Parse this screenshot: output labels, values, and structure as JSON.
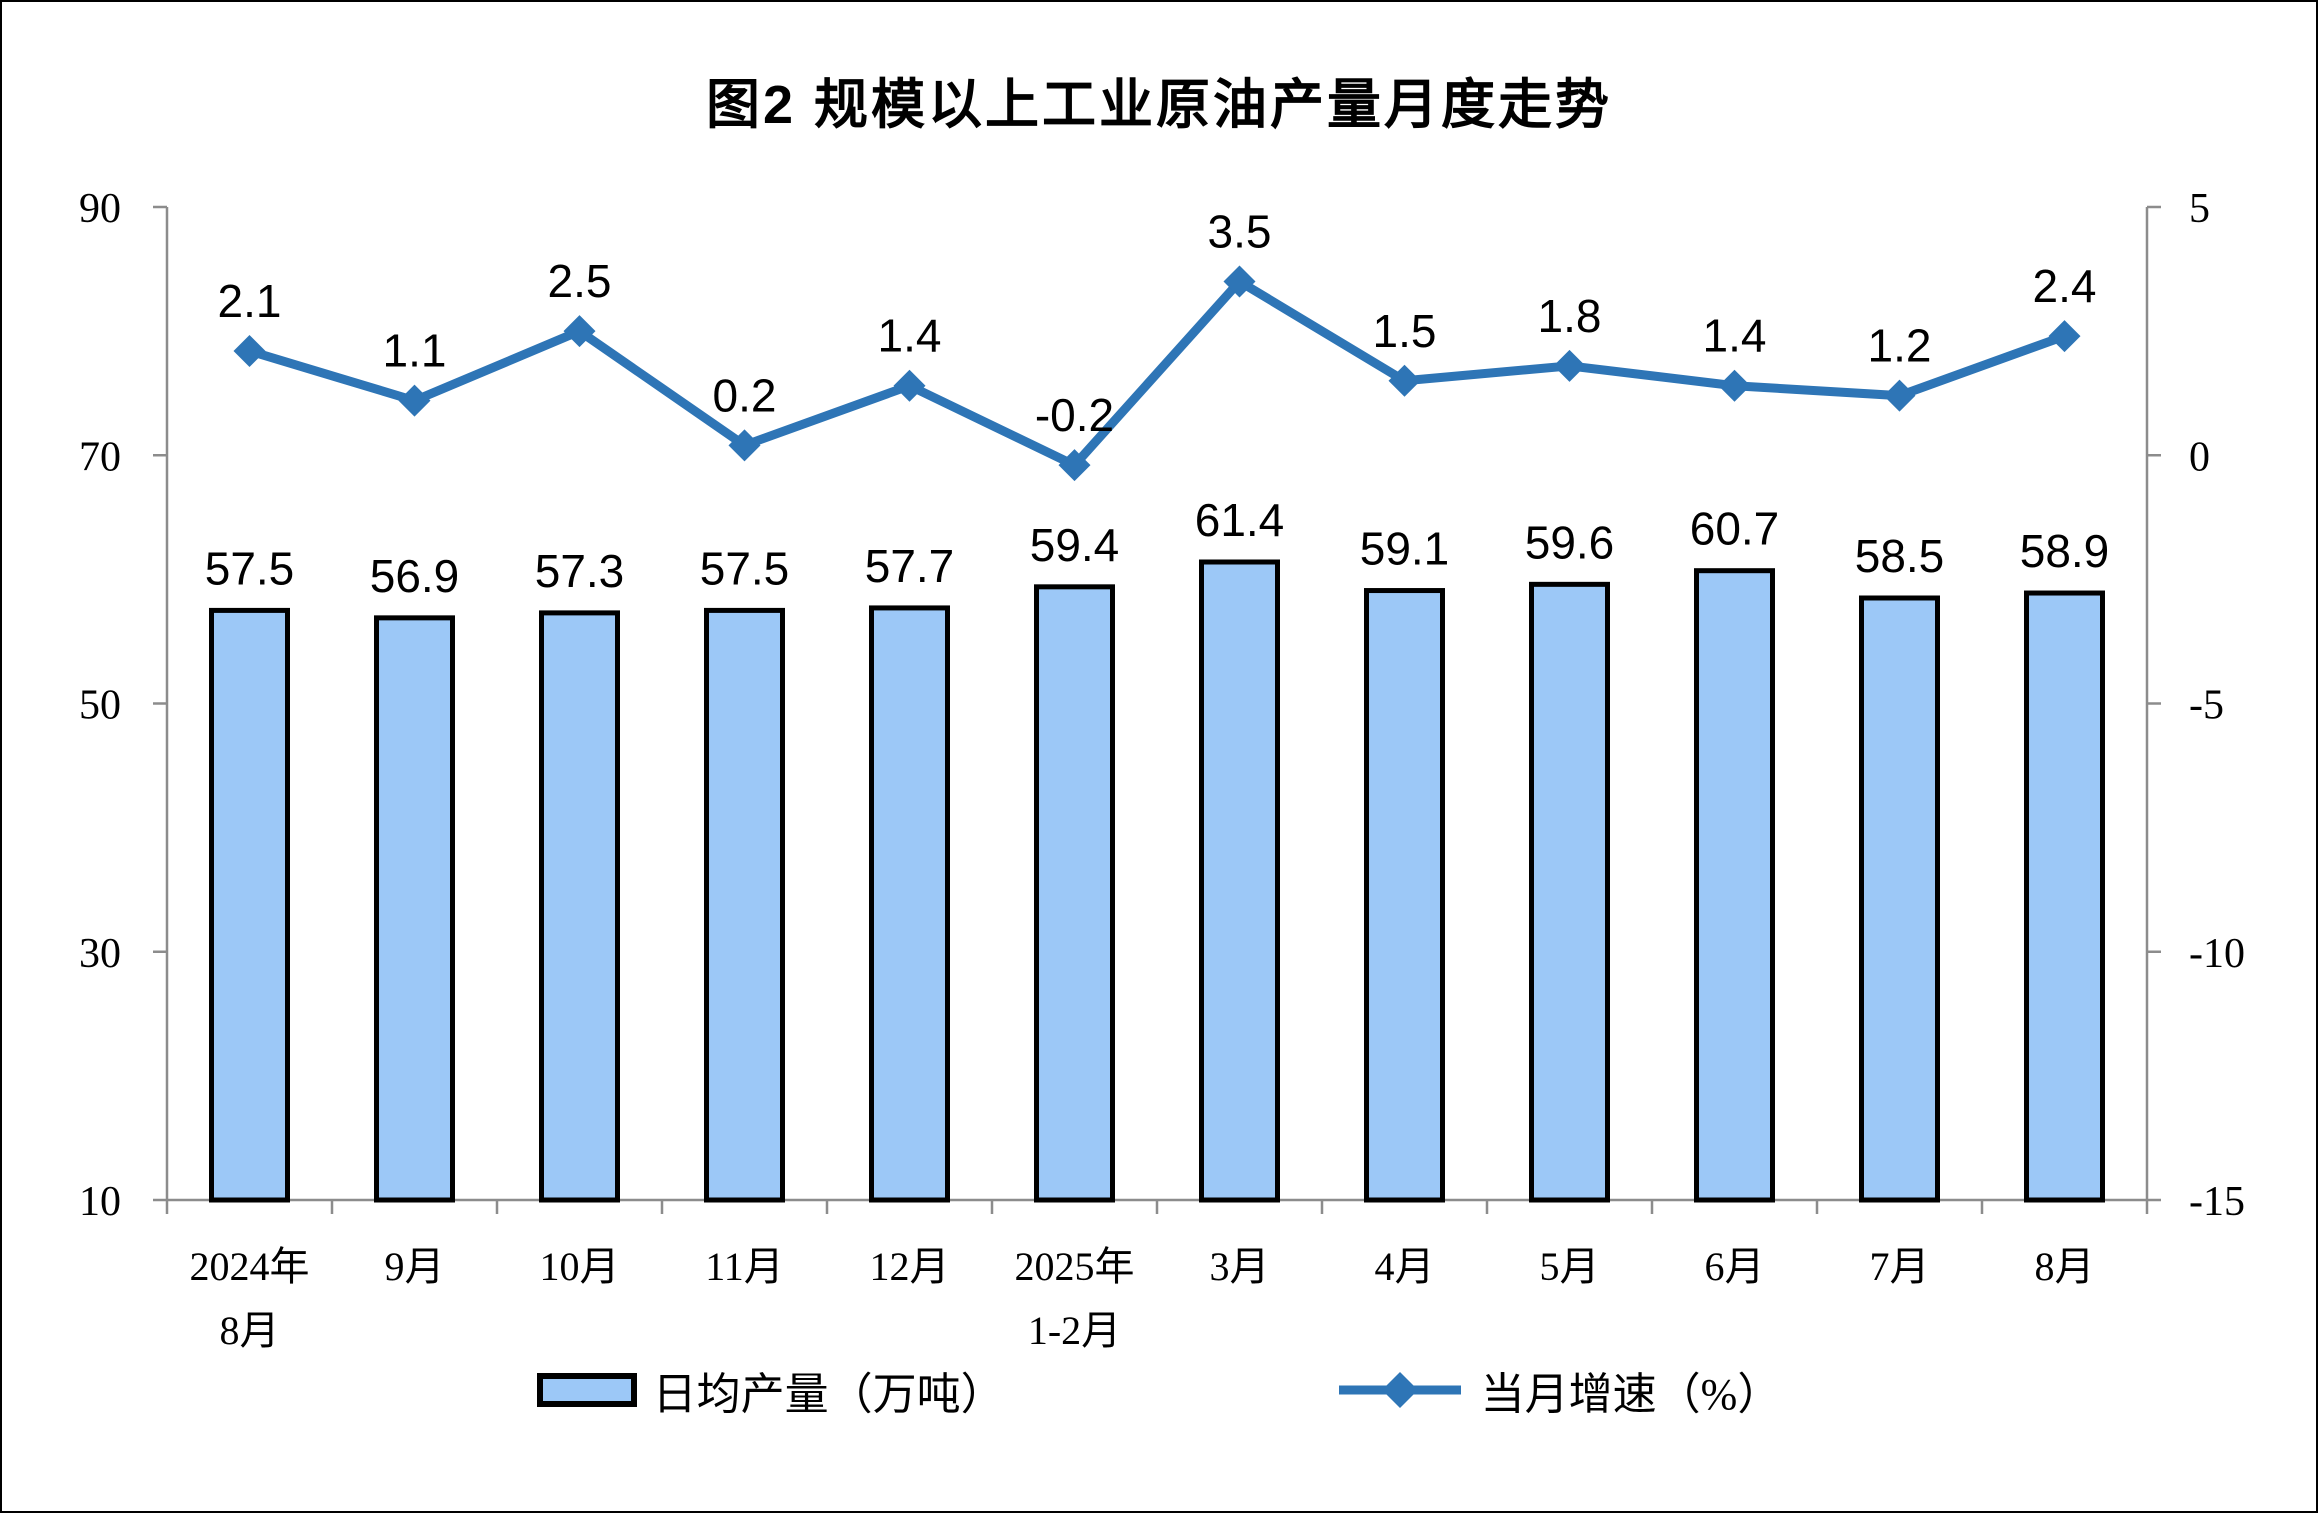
{
  "chart_data": {
    "type": "bar+line",
    "title": "图2 规模以上工业原油产量月度走势",
    "categories": [
      "2024年\n8月",
      "9月",
      "10月",
      "11月",
      "12月",
      "2025年\n1-2月",
      "3月",
      "4月",
      "5月",
      "6月",
      "7月",
      "8月"
    ],
    "series": [
      {
        "name": "日均产量（万吨）",
        "type": "bar",
        "axis": "left",
        "values": [
          57.5,
          56.9,
          57.3,
          57.5,
          57.7,
          59.4,
          61.4,
          59.1,
          59.6,
          60.7,
          58.5,
          58.9
        ]
      },
      {
        "name": "当月增速（%）",
        "type": "line",
        "axis": "right",
        "values": [
          2.1,
          1.1,
          2.5,
          0.2,
          1.4,
          -0.2,
          3.5,
          1.5,
          1.8,
          1.4,
          1.2,
          2.4
        ]
      }
    ],
    "left_axis": {
      "min": 10,
      "max": 90,
      "ticks": [
        90,
        70,
        50,
        30,
        10
      ]
    },
    "right_axis": {
      "min": -15,
      "max": 5,
      "ticks": [
        5,
        0,
        -5,
        -10,
        -15
      ]
    },
    "legend": [
      "日均产量（万吨）",
      "当月增速（%）"
    ],
    "legend_position": "bottom",
    "grid": false,
    "colors": {
      "bar_fill": "#9CC8F7",
      "bar_border": "#000000",
      "line": "#2E75B6",
      "axis": "#8C8C8C",
      "text": "#000000"
    }
  }
}
